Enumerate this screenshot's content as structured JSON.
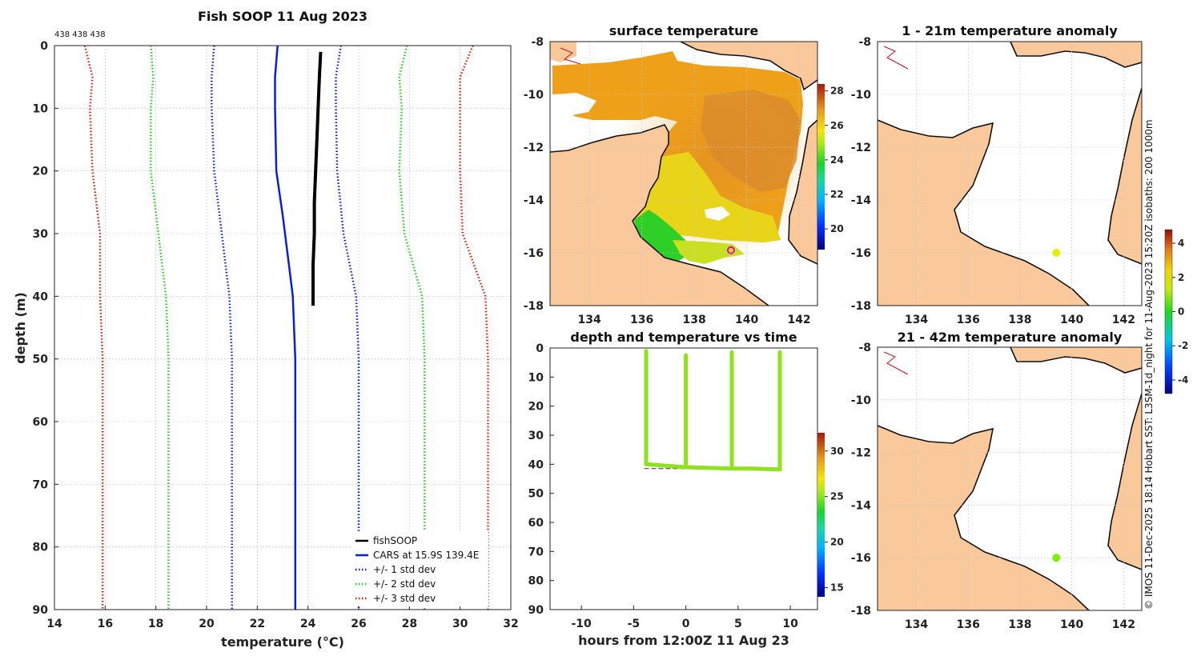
{
  "chart_data": [
    {
      "id": "profile",
      "type": "line",
      "title": "Fish SOOP 11 Aug 2023",
      "count_labels": "438 438 438",
      "xlabel": "temperature (°C)",
      "ylabel": "depth (m)",
      "xlim": [
        14,
        32
      ],
      "ylim": [
        0,
        90
      ],
      "xticks": [
        14,
        16,
        18,
        20,
        22,
        24,
        26,
        28,
        30,
        32
      ],
      "yticks": [
        0,
        10,
        20,
        30,
        40,
        50,
        60,
        70,
        80,
        90
      ],
      "series": [
        {
          "name": "fishSOOP",
          "color": "#000000",
          "style": "solid",
          "width": 4,
          "points": [
            [
              24.5,
              1
            ],
            [
              24.45,
              5
            ],
            [
              24.4,
              10
            ],
            [
              24.35,
              15
            ],
            [
              24.3,
              20
            ],
            [
              24.25,
              25
            ],
            [
              24.25,
              30
            ],
            [
              24.2,
              35
            ],
            [
              24.2,
              40
            ],
            [
              24.2,
              41.5
            ]
          ]
        },
        {
          "name": "CARS at 15.9S 139.4E",
          "color": "#0a1fd6",
          "style": "solid",
          "width": 2.5,
          "points": [
            [
              22.8,
              0
            ],
            [
              22.7,
              5
            ],
            [
              22.7,
              10
            ],
            [
              22.75,
              20
            ],
            [
              23.0,
              27
            ],
            [
              23.25,
              35
            ],
            [
              23.4,
              40
            ],
            [
              23.5,
              50
            ],
            [
              23.5,
              90
            ]
          ]
        },
        {
          "name": "+/- 1 std dev",
          "color": "#0a1fd6",
          "style": "dotted",
          "width": 2.5,
          "points": [
            [
              20.3,
              0
            ],
            [
              20.2,
              5
            ],
            [
              20.2,
              10
            ],
            [
              20.3,
              20
            ],
            [
              20.6,
              30
            ],
            [
              20.9,
              40
            ],
            [
              21.0,
              50
            ],
            [
              21.0,
              90
            ]
          ],
          "points2": [
            [
              25.3,
              0
            ],
            [
              25.1,
              5
            ],
            [
              25.1,
              10
            ],
            [
              25.15,
              20
            ],
            [
              25.4,
              30
            ],
            [
              25.9,
              40
            ],
            [
              26.0,
              50
            ],
            [
              26.0,
              90
            ]
          ]
        },
        {
          "name": "+/- 2 std dev",
          "color": "#22cc22",
          "style": "dotted",
          "width": 2.5,
          "points": [
            [
              17.8,
              0
            ],
            [
              17.9,
              5
            ],
            [
              17.8,
              10
            ],
            [
              17.8,
              20
            ],
            [
              18.1,
              30
            ],
            [
              18.4,
              40
            ],
            [
              18.5,
              50
            ],
            [
              18.5,
              90
            ]
          ],
          "points2": [
            [
              27.9,
              0
            ],
            [
              27.6,
              5
            ],
            [
              27.7,
              10
            ],
            [
              27.6,
              20
            ],
            [
              27.8,
              30
            ],
            [
              28.5,
              40
            ],
            [
              28.6,
              50
            ],
            [
              28.6,
              90
            ]
          ]
        },
        {
          "name": "+/- 3 std dev",
          "color": "#e01a10",
          "style": "dotted",
          "width": 2.5,
          "points": [
            [
              15.2,
              0
            ],
            [
              15.5,
              5
            ],
            [
              15.4,
              10
            ],
            [
              15.5,
              20
            ],
            [
              15.8,
              30
            ],
            [
              15.8,
              40
            ],
            [
              15.9,
              50
            ],
            [
              15.9,
              90
            ]
          ],
          "points2": [
            [
              30.5,
              0
            ],
            [
              30.0,
              5
            ],
            [
              30.0,
              10
            ],
            [
              30.0,
              20
            ],
            [
              30.1,
              30
            ],
            [
              31.0,
              40
            ],
            [
              31.1,
              50
            ],
            [
              31.1,
              90
            ]
          ]
        }
      ]
    },
    {
      "id": "sst",
      "type": "heatmap",
      "title": "surface temperature",
      "xlim": [
        132.5,
        142.7
      ],
      "ylim": [
        -18,
        -8
      ],
      "xticks": [
        134,
        136,
        138,
        140,
        142
      ],
      "yticks": [
        -8,
        -10,
        -12,
        -14,
        -16,
        -18
      ],
      "colorbar": {
        "ticks": [
          20,
          22,
          24,
          26,
          28
        ],
        "range": [
          18.8,
          28.4
        ]
      },
      "marker": {
        "lon": 139.4,
        "lat": -15.9,
        "color": "#e600c8"
      }
    },
    {
      "id": "anom1",
      "type": "scatter",
      "title": "1 - 21m temperature anomaly",
      "xlim": [
        132.5,
        142.7
      ],
      "ylim": [
        -18,
        -8
      ],
      "xticks": [
        134,
        136,
        138,
        140,
        142
      ],
      "yticks": [
        -8,
        -10,
        -12,
        -14,
        -16,
        -18
      ],
      "point": {
        "lon": 139.4,
        "lat": -16.0,
        "value": 1.6,
        "color": "#e3f000"
      },
      "colorbar": {
        "ticks": [
          -4,
          -2,
          0,
          2,
          4
        ],
        "range": [
          -4.8,
          4.8
        ]
      }
    },
    {
      "id": "anom2",
      "type": "scatter",
      "title": "21 - 42m temperature anomaly",
      "xlim": [
        132.5,
        142.7
      ],
      "ylim": [
        -18,
        -8
      ],
      "xticks": [
        134,
        136,
        138,
        140,
        142
      ],
      "yticks": [
        -8,
        -10,
        -12,
        -14,
        -16,
        -18
      ],
      "point": {
        "lon": 139.4,
        "lat": -16.0,
        "value": 0.8,
        "color": "#7fef00"
      }
    },
    {
      "id": "timeseries",
      "type": "scatter",
      "title": "depth and temperature vs time",
      "xlabel": "hours from 12:00Z 11 Aug 23",
      "xlim": [
        -13,
        12.6
      ],
      "ylim": [
        0,
        90
      ],
      "xticks": [
        -10,
        -5,
        0,
        5,
        10
      ],
      "yticks": [
        0,
        10,
        20,
        30,
        40,
        50,
        60,
        70,
        80,
        90
      ],
      "color": "#8ee21e",
      "bottom_line": {
        "depth": 41.5,
        "from": -4,
        "to": 9
      },
      "path": [
        [
          -3.8,
          1
        ],
        [
          -3.8,
          40
        ],
        [
          -2,
          40.5
        ],
        [
          0,
          41
        ],
        [
          0,
          2.5
        ],
        [
          0,
          41
        ],
        [
          2,
          41.2
        ],
        [
          4.4,
          41.5
        ],
        [
          4.4,
          1.5
        ],
        [
          4.4,
          41.5
        ],
        [
          6.5,
          41.5
        ],
        [
          9,
          41.8
        ],
        [
          9,
          1.5
        ],
        [
          9,
          41.8
        ]
      ],
      "colorbar": {
        "ticks": [
          15,
          20,
          25,
          30
        ],
        "range": [
          14,
          32
        ]
      }
    }
  ],
  "credit": "© IMOS 11-Dec-2025 18:14 Hobart SST: L3SM-1d_night for 11-Aug-2023 15:20Z isobaths: 200  1000m"
}
